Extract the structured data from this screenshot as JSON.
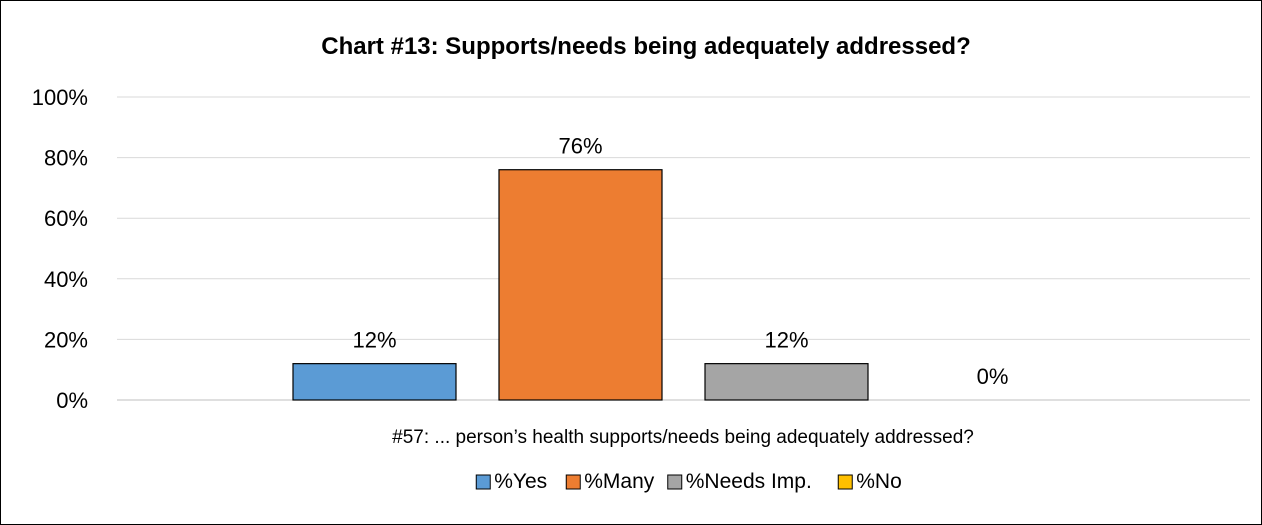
{
  "chart_data": {
    "type": "bar",
    "title": "Chart #13: Supports/needs being adequately addressed?",
    "xlabel": "#57: ... person’s health supports/needs being adequately addressed?",
    "ylabel": "",
    "ylim": [
      0,
      100
    ],
    "y_ticks": [
      "0%",
      "20%",
      "40%",
      "60%",
      "80%",
      "100%"
    ],
    "y_tick_values": [
      0,
      20,
      40,
      60,
      80,
      100
    ],
    "grid": true,
    "legend_position": "bottom",
    "series": [
      {
        "name": "%Yes",
        "values": [
          12
        ],
        "label": "12%",
        "color": "#5B9BD5"
      },
      {
        "name": "%Many",
        "values": [
          76
        ],
        "label": "76%",
        "color": "#ED7D31"
      },
      {
        "name": "%Needs Imp.",
        "values": [
          12
        ],
        "label": "12%",
        "color": "#A5A5A5"
      },
      {
        "name": "%No",
        "values": [
          0
        ],
        "label": "0%",
        "color": "#FFC000"
      }
    ]
  }
}
